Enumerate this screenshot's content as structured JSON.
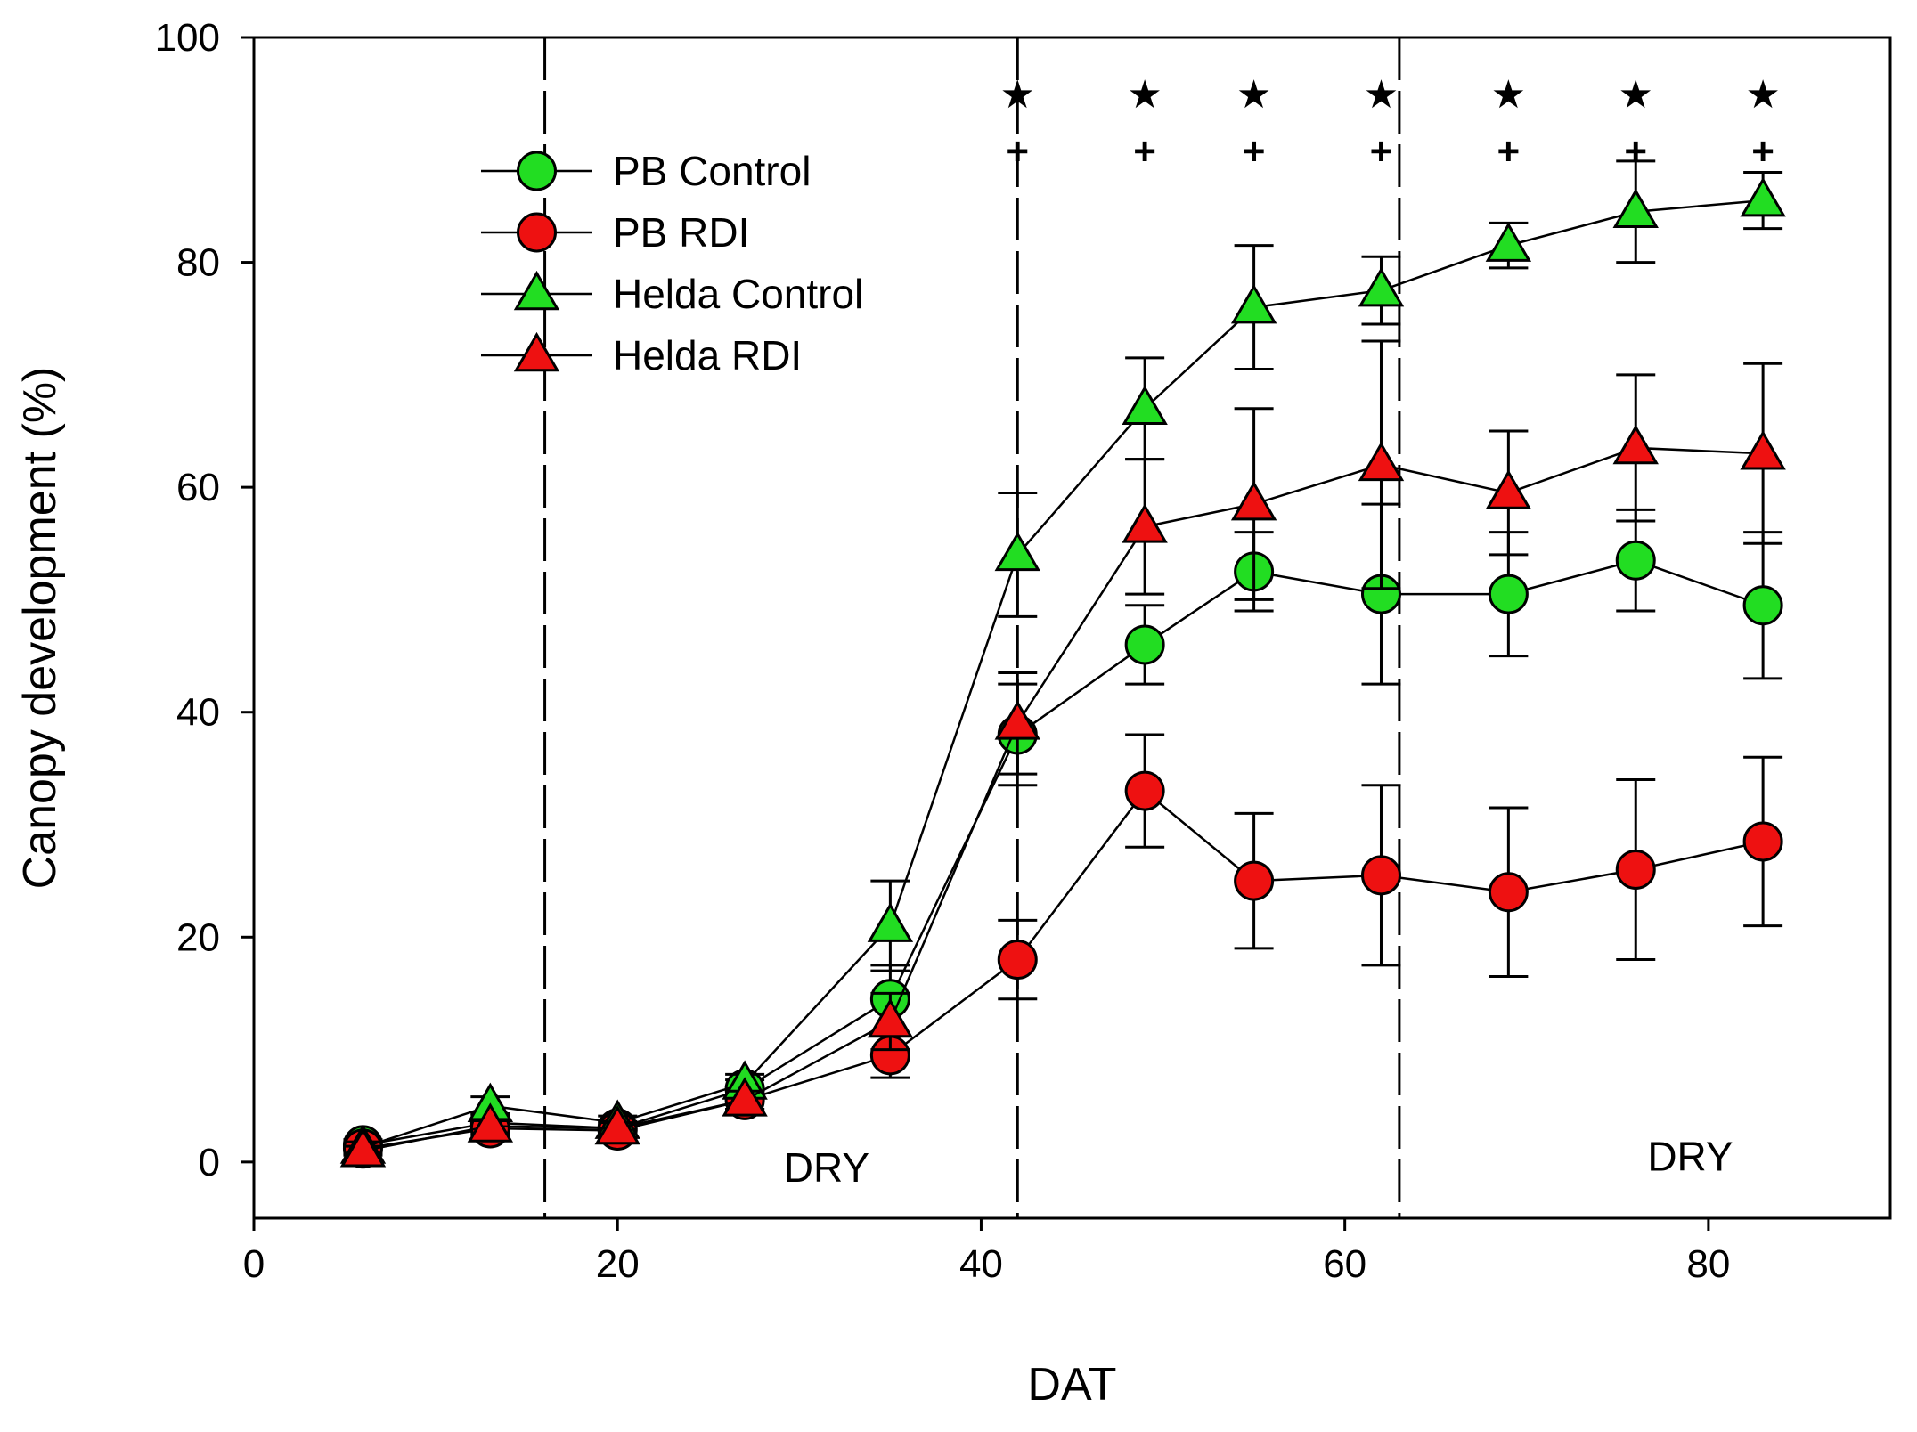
{
  "chart_data": {
    "type": "line",
    "title": "",
    "xlabel": "DAT",
    "ylabel": "Canopy development (%)",
    "xlim": [
      0,
      90
    ],
    "ylim": [
      -5,
      100
    ],
    "x_ticks": [
      0,
      20,
      40,
      60,
      80
    ],
    "y_ticks": [
      0,
      20,
      40,
      60,
      80,
      100
    ],
    "grid": false,
    "legend_position": "top-left",
    "x": [
      6,
      13,
      20,
      27,
      35,
      42,
      49,
      55,
      62,
      69,
      76,
      83
    ],
    "series": [
      {
        "name": "PB Control",
        "marker": "circle",
        "color": "#22dd22",
        "values": [
          1.5,
          3.5,
          3,
          6.5,
          14.5,
          38,
          46,
          52.5,
          50.5,
          50.5,
          53.5,
          49.5
        ],
        "error": [
          0.5,
          0.8,
          0.6,
          0.8,
          3,
          4.5,
          3.5,
          3.5,
          8,
          5.5,
          4.5,
          6.5
        ]
      },
      {
        "name": "PB RDI",
        "marker": "circle",
        "color": "#ee1111",
        "values": [
          1.2,
          3,
          2.8,
          5.5,
          9.5,
          18,
          33,
          25,
          25.5,
          24,
          26,
          28.5
        ],
        "error": [
          0.5,
          0.6,
          0.5,
          0.8,
          2,
          3.5,
          5,
          6,
          8,
          7.5,
          8,
          7.5
        ]
      },
      {
        "name": "Helda Control",
        "marker": "triangle",
        "color": "#22dd22",
        "values": [
          1.3,
          5,
          3.5,
          7,
          21,
          54,
          67,
          76,
          77.5,
          81.5,
          84.5,
          85.5
        ],
        "error": [
          0.5,
          0.8,
          0.6,
          0.8,
          4,
          5.5,
          4.5,
          5.5,
          3,
          2,
          4.5,
          2.5
        ]
      },
      {
        "name": "Helda RDI",
        "marker": "triangle",
        "color": "#ee1111",
        "values": [
          1.0,
          3.2,
          3.0,
          5.5,
          12.5,
          39,
          56.5,
          58.5,
          62,
          59.5,
          63.5,
          63
        ],
        "error": [
          0.4,
          0.6,
          0.5,
          0.8,
          2.5,
          4.5,
          6,
          8.5,
          11,
          5.5,
          6.5,
          8
        ]
      }
    ],
    "vertical_dashed_lines": [
      16,
      42,
      63
    ],
    "region_labels": [
      {
        "text": "DRY",
        "x": 31.5,
        "y": -0.5
      },
      {
        "text": "DRY",
        "x": 79,
        "y": 0.5
      }
    ],
    "significance_star_x": [
      42,
      49,
      55,
      62,
      69,
      76,
      83
    ],
    "significance_star_y": 95,
    "significance_star_symbol": "★",
    "significance_plus_x": [
      42,
      49,
      55,
      62,
      69,
      76,
      83
    ],
    "significance_plus_y": 90,
    "significance_plus_symbol": "+"
  }
}
